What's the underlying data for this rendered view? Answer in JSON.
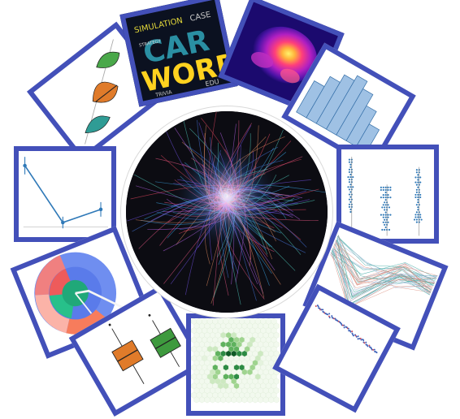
{
  "wordcloud": {
    "words": [
      "SIMULATION",
      "CASE",
      "CAR",
      "WORD",
      "STRATEGY",
      "TRIVIA",
      "EDU"
    ]
  },
  "colors": {
    "frame": "#4350b9",
    "center_background": "#0c0c12"
  },
  "icons": {
    "violin": "violin-plot-icon",
    "wordcloud": "word-cloud-icon",
    "density": "density-heatmap-icon",
    "histogram": "histogram-icon",
    "line": "line-plot-icon",
    "strip": "strip-plot-icon",
    "sunburst": "sunburst-icon",
    "parallel": "parallel-coordinates-icon",
    "boxplot": "box-plot-icon",
    "hexbin": "hexbin-icon",
    "scatter": "scatter-line-icon",
    "network": "network-bundle-icon"
  }
}
